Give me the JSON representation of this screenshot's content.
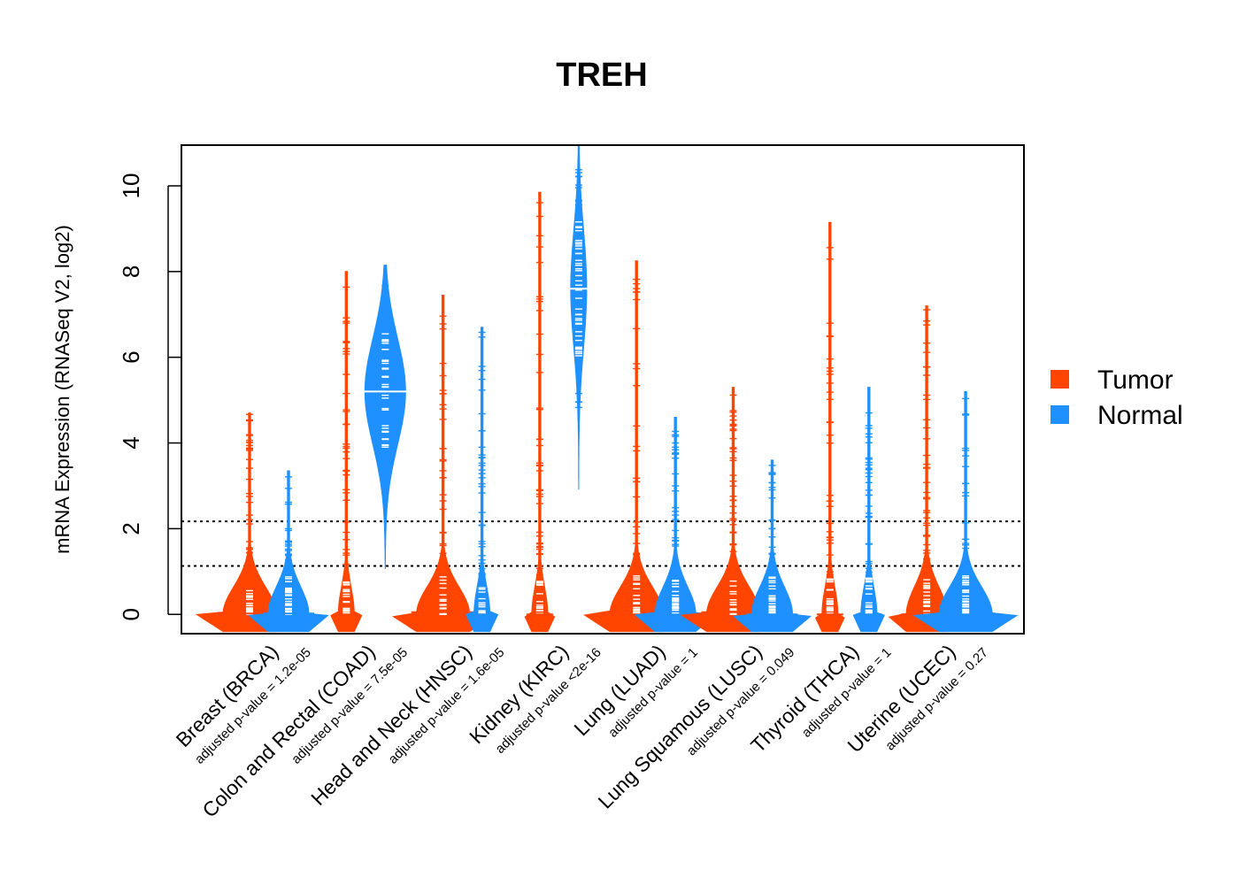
{
  "chart_data": {
    "type": "beanplot",
    "title": "TREH",
    "ylabel": "mRNA Expression (RNASeq V2, log2)",
    "xlabel": "",
    "ylim": [
      -0.45,
      10.95
    ],
    "yticks": [
      0,
      2,
      4,
      6,
      8,
      10
    ],
    "reference_lines": [
      1.13,
      2.17
    ],
    "legend": {
      "position": "right",
      "entries": [
        {
          "name": "Tumor",
          "color": "#FF4500"
        },
        {
          "name": "Normal",
          "color": "#1E90FF"
        }
      ]
    },
    "categories": [
      {
        "label": "Breast (BRCA)",
        "pvalue": "adjusted p-value = 1.2e-05",
        "tumor": {
          "median": 0.02,
          "max": 4.7,
          "spread": "wide"
        },
        "normal": {
          "median": 0.02,
          "max": 3.35,
          "spread": "medium"
        }
      },
      {
        "label": "Colon and Rectal (COAD)",
        "pvalue": "adjusted p-value = 7.5e-05",
        "tumor": {
          "median": 0.0,
          "max": 8.0,
          "spread": "narrow"
        },
        "normal": {
          "median": 5.2,
          "max": 8.15,
          "spread": "medium"
        }
      },
      {
        "label": "Head and Neck (HNSC)",
        "pvalue": "adjusted p-value = 1.6e-05",
        "tumor": {
          "median": 0.05,
          "max": 7.45,
          "spread": "wide"
        },
        "normal": {
          "median": 0.0,
          "max": 6.7,
          "spread": "narrow"
        }
      },
      {
        "label": "Kidney (KIRC)",
        "pvalue": "adjusted p-value <2e-16",
        "tumor": {
          "median": 0.0,
          "max": 9.85,
          "spread": "narrow"
        },
        "normal": {
          "median": 7.6,
          "max": 10.95,
          "spread": "narrow"
        }
      },
      {
        "label": "Lung (LUAD)",
        "pvalue": "adjusted p-value = 1",
        "tumor": {
          "median": 0.0,
          "max": 8.25,
          "spread": "wide"
        },
        "normal": {
          "median": 0.0,
          "max": 4.6,
          "spread": "medium"
        }
      },
      {
        "label": "Lung Squamous (LUSC)",
        "pvalue": "adjusted p-value = 0.049",
        "tumor": {
          "median": 0.05,
          "max": 5.3,
          "spread": "wide"
        },
        "normal": {
          "median": 0.0,
          "max": 3.6,
          "spread": "medium"
        }
      },
      {
        "label": "Thyroid (THCA)",
        "pvalue": "adjusted p-value = 1",
        "tumor": {
          "median": 0.0,
          "max": 9.15,
          "spread": "narrow"
        },
        "normal": {
          "median": 0.0,
          "max": 5.3,
          "spread": "narrow"
        }
      },
      {
        "label": "Uterine (UCEC)",
        "pvalue": "adjusted p-value = 0.27",
        "tumor": {
          "median": 0.0,
          "max": 7.2,
          "spread": "medium"
        },
        "normal": {
          "median": 0.0,
          "max": 5.2,
          "spread": "wide"
        }
      }
    ]
  }
}
